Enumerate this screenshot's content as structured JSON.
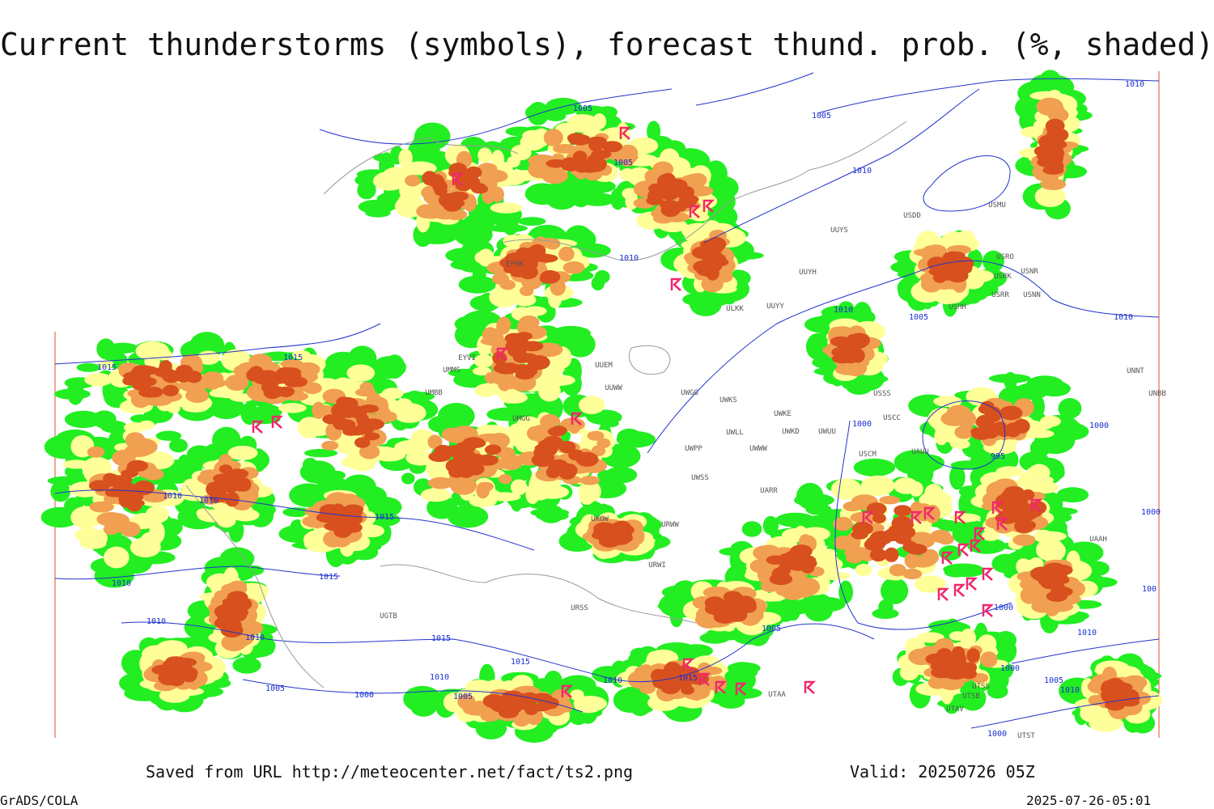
{
  "title": "Current thunderstorms (symbols), forecast thund. prob. (%, shaded)",
  "footer": {
    "saved": "Saved from URL http://meteocenter.net/fact/ts2.png",
    "valid": "Valid: 20250726 05Z",
    "credit": "GrADS/COLA",
    "timestamp": "2025-07-26-05:01"
  },
  "isobar_labels": [
    "1005",
    "1005",
    "1010",
    "1005",
    "1010",
    "1010",
    "1005",
    "1010",
    "1010",
    "1015",
    "1015",
    "1010",
    "1010",
    "1015",
    "1010",
    "1015",
    "1010",
    "1010",
    "1015",
    "1015",
    "1010",
    "1005",
    "1000",
    "1005",
    "1010",
    "1015",
    "1005",
    "1000",
    "995",
    "1000",
    "1000",
    "1010",
    "1000",
    "1005",
    "1010",
    "1000",
    "1000",
    "100"
  ],
  "station_labels": [
    "EFHK",
    "UUYH",
    "UUYS",
    "USDD",
    "USMU",
    "USRO",
    "USRK",
    "USNR",
    "USRR",
    "USNN",
    "USHH",
    "ULKK",
    "UUYY",
    "UUEM",
    "UUWW",
    "UWGG",
    "UWKS",
    "UWKE",
    "UWKD",
    "UWUU",
    "UWLL",
    "UWPP",
    "UWWW",
    "UWSS",
    "UARR",
    "URWW",
    "UKOW",
    "URWI",
    "USSS",
    "USCC",
    "USCM",
    "UAUU",
    "UNNT",
    "UNBB",
    "UMBB",
    "UMMS",
    "EYVI",
    "UMGG",
    "URSS",
    "UGTB",
    "UTAA",
    "UTSS",
    "UTSB",
    "UTAV",
    "UTST",
    "UAAH"
  ]
}
